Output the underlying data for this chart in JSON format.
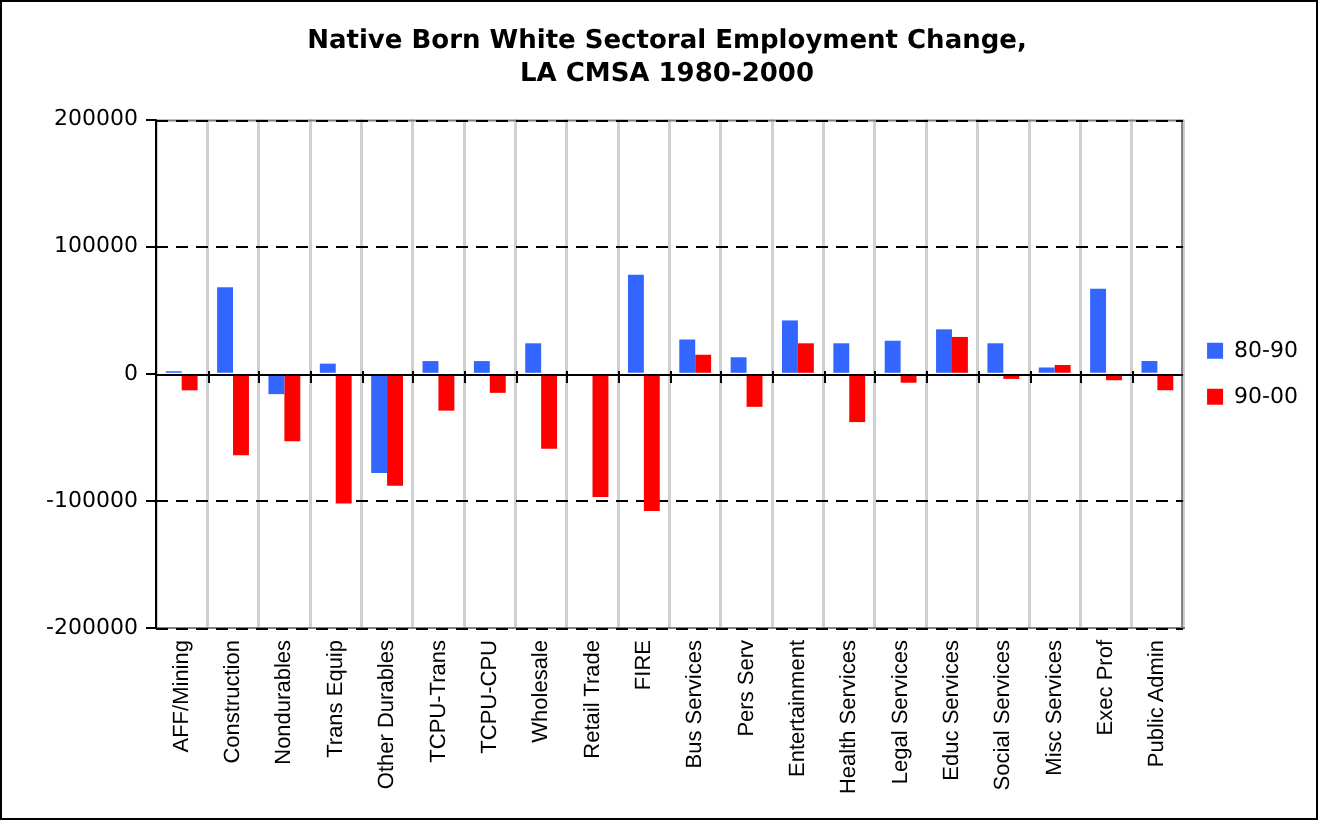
{
  "chart_data": {
    "type": "bar",
    "title": "Native Born White Sectoral Employment Change,\nLA CMSA 1980-2000",
    "categories": [
      "AFF/Mining",
      "Construction",
      "Nondurables",
      "Trans Equip",
      "Other Durables",
      "TCPU-Trans",
      "TCPU-CPU",
      "Wholesale",
      "Retail Trade",
      "FIRE",
      "Bus Services",
      "Pers Serv",
      "Entertainment",
      "Health Services",
      "Legal Services",
      "Educ Services",
      "Social Services",
      "Misc Services",
      "Exec Prof",
      "Public Admin"
    ],
    "series": [
      {
        "name": "80-90",
        "color": "#3366ff",
        "values": [
          2000,
          68000,
          -16000,
          8000,
          -78000,
          10000,
          10000,
          24000,
          0,
          78000,
          27000,
          13000,
          42000,
          24000,
          26000,
          35000,
          24000,
          5000,
          67000,
          10000
        ]
      },
      {
        "name": "90-00",
        "color": "#ff0000",
        "values": [
          -13000,
          -64000,
          -53000,
          -102000,
          -88000,
          -29000,
          -15000,
          -59000,
          -97000,
          -108000,
          15000,
          -26000,
          24000,
          -38000,
          -7000,
          29000,
          -4000,
          7000,
          -5000,
          -13000
        ]
      }
    ],
    "ylim": [
      -200000,
      200000
    ],
    "yticks": [
      -200000,
      -100000,
      0,
      100000,
      200000
    ],
    "grid": true,
    "legend": "right"
  }
}
